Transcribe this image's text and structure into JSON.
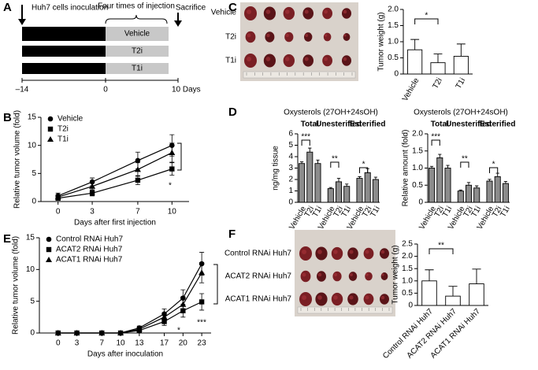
{
  "panels": [
    "A",
    "B",
    "C",
    "D",
    "E",
    "F"
  ],
  "timeline": {
    "start_label": "Huh7 cells inoculation",
    "injection_label": "Four times of injection",
    "end_label": "Sacrifice",
    "groups": [
      "Vehicle",
      "T2i",
      "T1i"
    ],
    "ticks": [
      "–14",
      "0",
      "10 Days"
    ]
  },
  "photo_c": {
    "rows": [
      "Vehicle",
      "T2i",
      "T1i"
    ]
  },
  "photo_f": {
    "rows": [
      "Control RNAi Huh7",
      "ACAT2 RNAi Huh7",
      "ACAT1 RNAi Huh7"
    ]
  },
  "chart_data": [
    {
      "type": "line",
      "xlabel": "Days after first injection",
      "ylabel": "Relative tumor volume (fold)",
      "x": [
        0,
        3,
        7,
        10
      ],
      "xlim": [
        -1.5,
        11.5
      ],
      "xticks": [
        0,
        3,
        7,
        10
      ],
      "ylim": [
        0,
        15
      ],
      "yticks": [
        0,
        5,
        10,
        15
      ],
      "legend": "upper left",
      "series": [
        {
          "name": "Vehicle",
          "marker": "circle",
          "color": "#000000",
          "values": [
            1,
            3.5,
            7.3,
            10
          ],
          "errors": [
            0.5,
            0.7,
            1.5,
            1.9
          ]
        },
        {
          "name": "T2i",
          "marker": "square",
          "color": "#000000",
          "values": [
            0.6,
            1.5,
            3.8,
            5.8
          ],
          "errors": [
            0.4,
            0.5,
            0.8,
            1.1
          ]
        },
        {
          "name": "T1i",
          "marker": "triangle",
          "color": "#000000",
          "values": [
            0.8,
            2.7,
            5.7,
            8.7
          ],
          "errors": [
            0.4,
            0.6,
            1.2,
            1.7
          ]
        }
      ],
      "annotations": [
        "*"
      ]
    },
    {
      "type": "bar",
      "ylabel": "Tumor weight (g)",
      "categories": [
        "Vehicle",
        "T2i",
        "T1i"
      ],
      "values": [
        0.75,
        0.35,
        0.55
      ],
      "errors": [
        0.32,
        0.27,
        0.38
      ],
      "color": "#ffffff",
      "ylim": [
        0,
        2
      ],
      "yticks": [
        0,
        0.5,
        {
          "value": 1,
          "label": "1.0"
        },
        1.5,
        {
          "value": 2,
          "label": "2.0"
        }
      ],
      "annotations": [
        "*"
      ]
    },
    {
      "type": "bar",
      "title": "Oxysterols (27OH+24sOH)",
      "ylabel": "ng/mg tissue",
      "groups": [
        "Total",
        "Unesterified",
        "Esterified"
      ],
      "categories": [
        "Vehicle",
        "T2i",
        "T1i",
        "Vehicle",
        "T2i",
        "T1i",
        "Vehicle",
        "T2i",
        "T1i"
      ],
      "values": [
        3.4,
        4.4,
        3.4,
        1.2,
        1.8,
        1.4,
        2.1,
        2.6,
        2.0
      ],
      "errors": [
        0.15,
        0.35,
        0.3,
        0.1,
        0.3,
        0.2,
        0.15,
        0.35,
        0.2
      ],
      "color": "#8c8c8c",
      "ylim": [
        0,
        6
      ],
      "yticks": [
        0,
        1,
        2,
        3,
        4,
        5,
        6
      ],
      "annotations": [
        "***",
        "**",
        "*"
      ]
    },
    {
      "type": "bar",
      "title": "Oxysterols (27OH+24sOH)",
      "ylabel": "Relative amount (fold)",
      "groups": [
        "Total",
        "Unesterified",
        "Esterified"
      ],
      "categories": [
        "Vehicle",
        "T2i",
        "T1i",
        "Vehicle",
        "T2i",
        "T1i",
        "Vehicle",
        "T2i",
        "T1i"
      ],
      "values": [
        1.0,
        1.3,
        1.0,
        0.33,
        0.5,
        0.42,
        0.62,
        0.75,
        0.55
      ],
      "errors": [
        0.05,
        0.1,
        0.08,
        0.03,
        0.08,
        0.06,
        0.05,
        0.1,
        0.06
      ],
      "color": "#8c8c8c",
      "ylim": [
        0,
        2
      ],
      "yticks": [
        0,
        0.5,
        {
          "value": 1,
          "label": "1.0"
        },
        1.5,
        {
          "value": 2,
          "label": "2.0"
        }
      ],
      "annotations": [
        "***",
        "**",
        "*"
      ]
    },
    {
      "type": "line",
      "xlabel": "Days after inoculation",
      "ylabel": "Relative tumor volume (fold)",
      "x": [
        0,
        3,
        7,
        10,
        13,
        17,
        20,
        23
      ],
      "xlim": [
        -3,
        24.5
      ],
      "xticks": [
        0,
        3,
        7,
        10,
        13,
        17,
        20,
        23
      ],
      "ylim": [
        0,
        15
      ],
      "yticks": [
        0,
        5,
        10,
        15
      ],
      "legend": "upper left",
      "series": [
        {
          "name": "Control RNAi Huh7",
          "marker": "circle",
          "color": "#000000",
          "values": [
            0,
            0,
            0,
            0,
            0.8,
            3,
            5.5,
            10.9
          ],
          "errors": [
            0,
            0,
            0,
            0,
            0.3,
            0.8,
            1.3,
            1.8
          ]
        },
        {
          "name": "ACAT2 RNAi Huh7",
          "marker": "square",
          "color": "#000000",
          "values": [
            0,
            0,
            0,
            0,
            0.4,
            1.8,
            3.5,
            4.9
          ],
          "errors": [
            0,
            0,
            0,
            0,
            0.2,
            0.6,
            1.0,
            1.3
          ]
        },
        {
          "name": "ACAT1 RNAi Huh7",
          "marker": "triangle",
          "color": "#000000",
          "values": [
            0,
            0,
            0,
            0,
            0.6,
            2.5,
            4.5,
            9.5
          ],
          "errors": [
            0,
            0,
            0,
            0,
            0.3,
            0.7,
            1.2,
            1.6
          ]
        }
      ],
      "annotations": [
        "*",
        "***"
      ]
    },
    {
      "type": "bar",
      "ylabel": "Tumor weight (g)",
      "categories": [
        "Control RNAi Huh7",
        "ACAT2 RNAi Huh7",
        "ACAT1 RNAi Huh7"
      ],
      "values": [
        1.0,
        0.38,
        0.88
      ],
      "errors": [
        0.45,
        0.4,
        0.6
      ],
      "color": "#ffffff",
      "ylim": [
        0,
        2.5
      ],
      "yticks": [
        0,
        0.5,
        {
          "value": 1,
          "label": "1.0"
        },
        1.5,
        {
          "value": 2,
          "label": "2.0"
        },
        2.5
      ],
      "annotations": [
        "**"
      ]
    }
  ]
}
